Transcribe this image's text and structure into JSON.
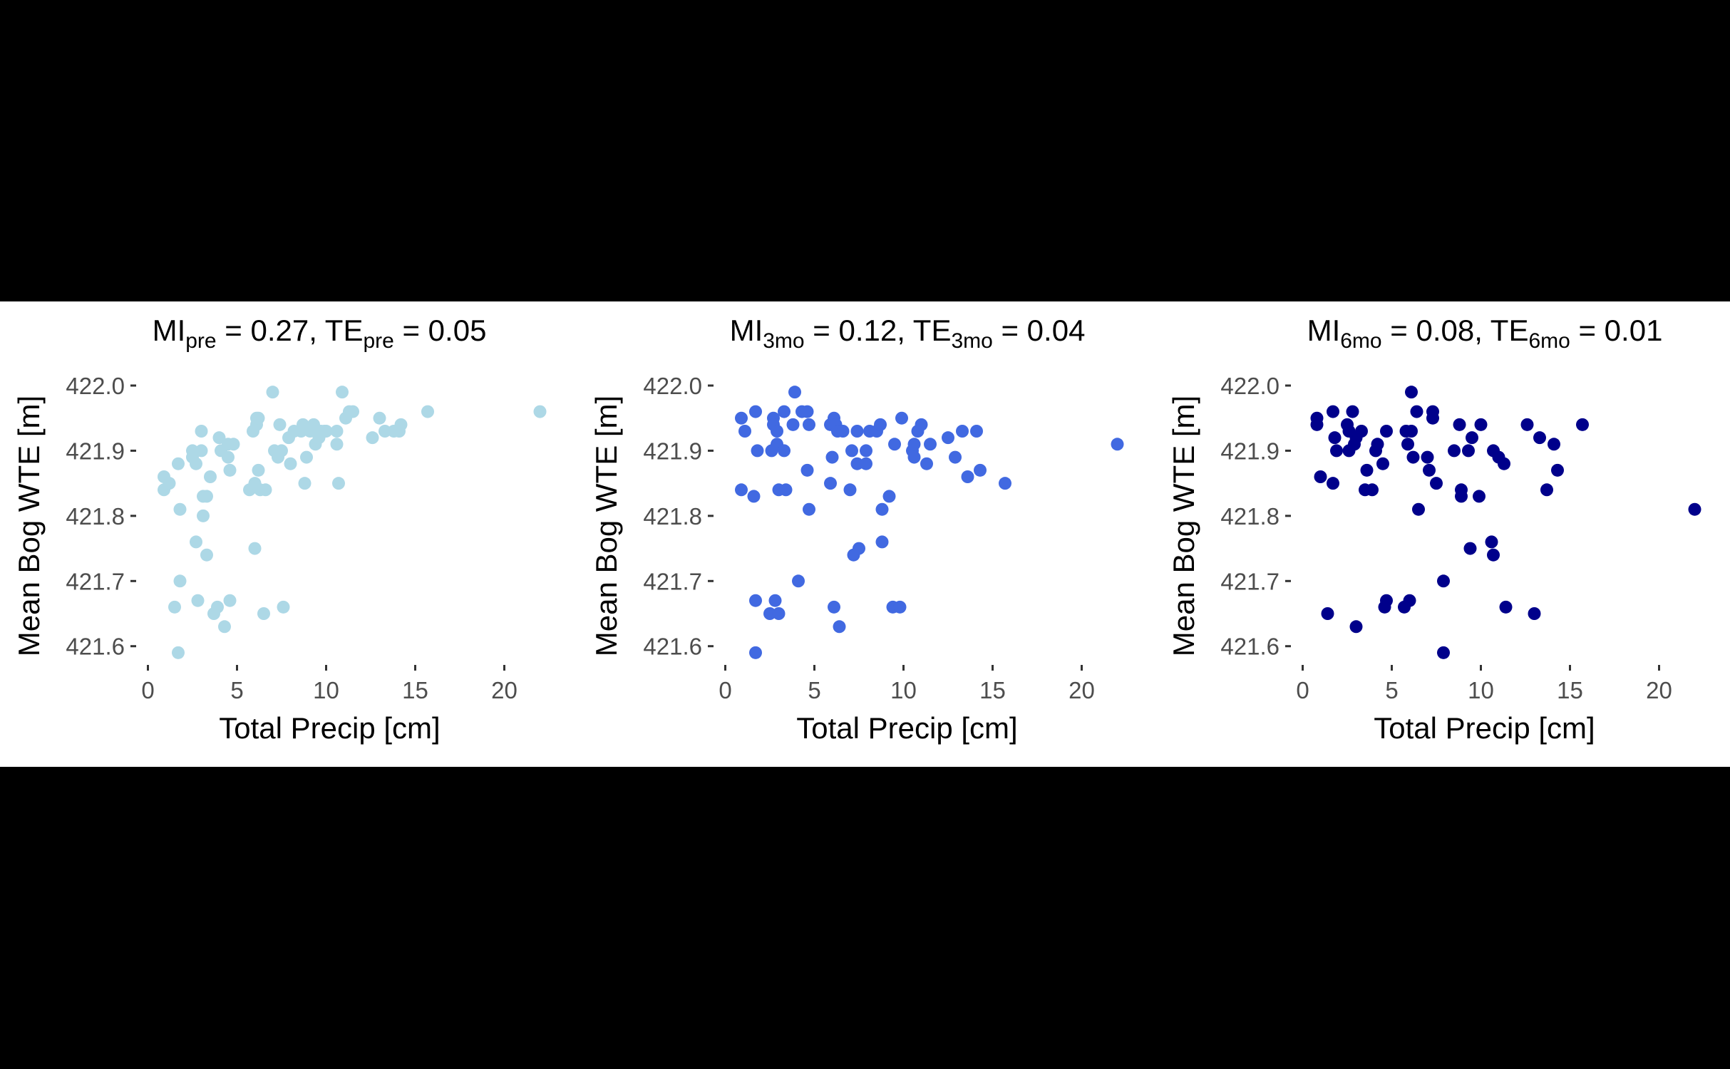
{
  "chart_data": [
    {
      "type": "scatter",
      "title_parts": [
        {
          "text": "MI",
          "sub": false
        },
        {
          "text": "pre",
          "sub": true
        },
        {
          "text": " = 0.27, TE",
          "sub": false
        },
        {
          "text": "pre",
          "sub": true
        },
        {
          "text": " = 0.05",
          "sub": false
        }
      ],
      "xlabel": "Total Precip [cm]",
      "ylabel": "Mean Bog WTE [m]",
      "xlim": [
        -0.5,
        22.5
      ],
      "ylim": [
        421.58,
        422.0
      ],
      "xticks": [
        0,
        5,
        10,
        15,
        20
      ],
      "yticks": [
        421.6,
        421.7,
        421.8,
        421.9,
        422.0
      ],
      "yticklabels": [
        "421.6",
        "421.7",
        "421.8",
        "421.9",
        "422.0"
      ],
      "color": "#add8e6",
      "grid": false,
      "points": [
        [
          0.9,
          421.86
        ],
        [
          0.9,
          421.84
        ],
        [
          1.2,
          421.85
        ],
        [
          1.5,
          421.66
        ],
        [
          1.7,
          421.59
        ],
        [
          1.7,
          421.88
        ],
        [
          1.8,
          421.81
        ],
        [
          1.8,
          421.7
        ],
        [
          2.5,
          421.89
        ],
        [
          2.5,
          421.9
        ],
        [
          2.7,
          421.76
        ],
        [
          2.7,
          421.88
        ],
        [
          2.8,
          421.67
        ],
        [
          3.0,
          421.9
        ],
        [
          3.0,
          421.93
        ],
        [
          3.1,
          421.8
        ],
        [
          3.1,
          421.83
        ],
        [
          3.3,
          421.83
        ],
        [
          3.3,
          421.74
        ],
        [
          3.5,
          421.86
        ],
        [
          3.7,
          421.65
        ],
        [
          3.9,
          421.66
        ],
        [
          4.0,
          421.92
        ],
        [
          4.1,
          421.9
        ],
        [
          4.3,
          421.63
        ],
        [
          4.5,
          421.89
        ],
        [
          4.5,
          421.91
        ],
        [
          4.6,
          421.87
        ],
        [
          4.6,
          421.67
        ],
        [
          4.8,
          421.91
        ],
        [
          5.7,
          421.84
        ],
        [
          5.9,
          421.93
        ],
        [
          6.0,
          421.85
        ],
        [
          6.0,
          421.75
        ],
        [
          6.1,
          421.95
        ],
        [
          6.1,
          421.94
        ],
        [
          6.2,
          421.95
        ],
        [
          6.2,
          421.87
        ],
        [
          6.3,
          421.84
        ],
        [
          6.5,
          421.65
        ],
        [
          6.6,
          421.84
        ],
        [
          7.0,
          421.99
        ],
        [
          7.1,
          421.9
        ],
        [
          7.3,
          421.89
        ],
        [
          7.4,
          421.94
        ],
        [
          7.5,
          421.9
        ],
        [
          7.6,
          421.66
        ],
        [
          7.9,
          421.92
        ],
        [
          8.0,
          421.88
        ],
        [
          8.2,
          421.93
        ],
        [
          8.6,
          421.93
        ],
        [
          8.7,
          421.94
        ],
        [
          8.8,
          421.85
        ],
        [
          8.9,
          421.89
        ],
        [
          9.1,
          421.93
        ],
        [
          9.3,
          421.94
        ],
        [
          9.4,
          421.91
        ],
        [
          9.6,
          421.92
        ],
        [
          9.7,
          421.93
        ],
        [
          9.9,
          421.93
        ],
        [
          10.0,
          421.93
        ],
        [
          10.6,
          421.91
        ],
        [
          10.6,
          421.93
        ],
        [
          10.7,
          421.85
        ],
        [
          10.9,
          421.99
        ],
        [
          11.1,
          421.95
        ],
        [
          11.3,
          421.96
        ],
        [
          11.5,
          421.96
        ],
        [
          12.6,
          421.92
        ],
        [
          13.0,
          421.95
        ],
        [
          13.3,
          421.93
        ],
        [
          13.8,
          421.93
        ],
        [
          14.1,
          421.93
        ],
        [
          14.2,
          421.94
        ],
        [
          15.7,
          421.96
        ],
        [
          22.0,
          421.96
        ]
      ]
    },
    {
      "type": "scatter",
      "title_parts": [
        {
          "text": "MI",
          "sub": false
        },
        {
          "text": "3mo",
          "sub": true
        },
        {
          "text": " = 0.12, TE",
          "sub": false
        },
        {
          "text": "3mo",
          "sub": true
        },
        {
          "text": " = 0.04",
          "sub": false
        }
      ],
      "xlabel": "Total Precip [cm]",
      "ylabel": "Mean Bog WTE [m]",
      "xlim": [
        -0.5,
        22.5
      ],
      "ylim": [
        421.58,
        422.0
      ],
      "xticks": [
        0,
        5,
        10,
        15,
        20
      ],
      "yticks": [
        421.6,
        421.7,
        421.8,
        421.9,
        422.0
      ],
      "yticklabels": [
        "421.6",
        "421.7",
        "421.8",
        "421.9",
        "422.0"
      ],
      "color": "#4169e1",
      "grid": false,
      "points": [
        [
          0.9,
          421.95
        ],
        [
          0.9,
          421.84
        ],
        [
          1.1,
          421.93
        ],
        [
          1.6,
          421.83
        ],
        [
          1.7,
          421.96
        ],
        [
          1.7,
          421.59
        ],
        [
          1.7,
          421.67
        ],
        [
          1.8,
          421.9
        ],
        [
          2.5,
          421.65
        ],
        [
          2.6,
          421.9
        ],
        [
          2.7,
          421.95
        ],
        [
          2.7,
          421.94
        ],
        [
          2.8,
          421.67
        ],
        [
          2.9,
          421.91
        ],
        [
          2.9,
          421.93
        ],
        [
          3.0,
          421.84
        ],
        [
          3.0,
          421.65
        ],
        [
          3.3,
          421.96
        ],
        [
          3.3,
          421.9
        ],
        [
          3.4,
          421.84
        ],
        [
          3.8,
          421.94
        ],
        [
          3.9,
          421.99
        ],
        [
          4.1,
          421.7
        ],
        [
          4.3,
          421.96
        ],
        [
          4.6,
          421.96
        ],
        [
          4.6,
          421.87
        ],
        [
          4.7,
          421.81
        ],
        [
          4.7,
          421.94
        ],
        [
          5.9,
          421.94
        ],
        [
          5.9,
          421.85
        ],
        [
          6.0,
          421.89
        ],
        [
          6.1,
          421.95
        ],
        [
          6.1,
          421.66
        ],
        [
          6.2,
          421.94
        ],
        [
          6.3,
          421.93
        ],
        [
          6.4,
          421.63
        ],
        [
          6.6,
          421.93
        ],
        [
          7.0,
          421.84
        ],
        [
          7.1,
          421.9
        ],
        [
          7.2,
          421.74
        ],
        [
          7.4,
          421.93
        ],
        [
          7.4,
          421.88
        ],
        [
          7.5,
          421.75
        ],
        [
          7.9,
          421.88
        ],
        [
          7.9,
          421.9
        ],
        [
          8.1,
          421.93
        ],
        [
          8.5,
          421.93
        ],
        [
          8.7,
          421.94
        ],
        [
          8.8,
          421.81
        ],
        [
          8.8,
          421.76
        ],
        [
          9.2,
          421.83
        ],
        [
          9.4,
          421.66
        ],
        [
          9.5,
          421.91
        ],
        [
          9.8,
          421.66
        ],
        [
          9.9,
          421.95
        ],
        [
          10.5,
          421.9
        ],
        [
          10.6,
          421.89
        ],
        [
          10.6,
          421.91
        ],
        [
          10.8,
          421.93
        ],
        [
          11.0,
          421.94
        ],
        [
          11.3,
          421.88
        ],
        [
          11.5,
          421.91
        ],
        [
          12.5,
          421.92
        ],
        [
          12.9,
          421.89
        ],
        [
          13.3,
          421.93
        ],
        [
          13.6,
          421.86
        ],
        [
          14.1,
          421.93
        ],
        [
          14.3,
          421.87
        ],
        [
          15.7,
          421.85
        ],
        [
          22.0,
          421.91
        ]
      ]
    },
    {
      "type": "scatter",
      "title_parts": [
        {
          "text": "MI",
          "sub": false
        },
        {
          "text": "6mo",
          "sub": true
        },
        {
          "text": " = 0.08, TE",
          "sub": false
        },
        {
          "text": "6mo",
          "sub": true
        },
        {
          "text": " = 0.01",
          "sub": false
        }
      ],
      "xlabel": "Total Precip [cm]",
      "ylabel": "Mean Bog WTE [m]",
      "xlim": [
        -0.5,
        22.5
      ],
      "ylim": [
        421.58,
        422.0
      ],
      "xticks": [
        0,
        5,
        10,
        15,
        20
      ],
      "yticks": [
        421.6,
        421.7,
        421.8,
        421.9,
        422.0
      ],
      "yticklabels": [
        "421.6",
        "421.7",
        "421.8",
        "421.9",
        "422.0"
      ],
      "color": "#00008b",
      "grid": false,
      "points": [
        [
          0.8,
          421.95
        ],
        [
          0.8,
          421.94
        ],
        [
          1.0,
          421.86
        ],
        [
          1.4,
          421.65
        ],
        [
          1.7,
          421.85
        ],
        [
          1.7,
          421.96
        ],
        [
          1.8,
          421.92
        ],
        [
          1.9,
          421.9
        ],
        [
          2.5,
          421.94
        ],
        [
          2.6,
          421.93
        ],
        [
          2.6,
          421.9
        ],
        [
          2.8,
          421.96
        ],
        [
          2.9,
          421.91
        ],
        [
          3.0,
          421.92
        ],
        [
          3.0,
          421.63
        ],
        [
          3.3,
          421.93
        ],
        [
          3.5,
          421.84
        ],
        [
          3.6,
          421.87
        ],
        [
          3.9,
          421.84
        ],
        [
          4.1,
          421.9
        ],
        [
          4.2,
          421.91
        ],
        [
          4.5,
          421.88
        ],
        [
          4.6,
          421.66
        ],
        [
          4.7,
          421.93
        ],
        [
          4.7,
          421.67
        ],
        [
          5.7,
          421.66
        ],
        [
          5.8,
          421.93
        ],
        [
          5.9,
          421.91
        ],
        [
          6.0,
          421.67
        ],
        [
          6.1,
          421.93
        ],
        [
          6.1,
          421.99
        ],
        [
          6.2,
          421.89
        ],
        [
          6.4,
          421.96
        ],
        [
          6.5,
          421.81
        ],
        [
          7.0,
          421.89
        ],
        [
          7.1,
          421.87
        ],
        [
          7.3,
          421.96
        ],
        [
          7.3,
          421.95
        ],
        [
          7.5,
          421.85
        ],
        [
          7.9,
          421.7
        ],
        [
          7.9,
          421.59
        ],
        [
          8.5,
          421.9
        ],
        [
          8.8,
          421.94
        ],
        [
          8.9,
          421.84
        ],
        [
          8.9,
          421.83
        ],
        [
          9.3,
          421.9
        ],
        [
          9.4,
          421.75
        ],
        [
          9.5,
          421.92
        ],
        [
          9.9,
          421.83
        ],
        [
          10.0,
          421.94
        ],
        [
          10.6,
          421.76
        ],
        [
          10.7,
          421.74
        ],
        [
          10.7,
          421.9
        ],
        [
          11.0,
          421.89
        ],
        [
          11.3,
          421.88
        ],
        [
          11.4,
          421.66
        ],
        [
          12.6,
          421.94
        ],
        [
          13.0,
          421.65
        ],
        [
          13.3,
          421.92
        ],
        [
          13.7,
          421.84
        ],
        [
          14.1,
          421.91
        ],
        [
          14.3,
          421.87
        ],
        [
          15.7,
          421.94
        ],
        [
          22.0,
          421.81
        ]
      ]
    }
  ]
}
